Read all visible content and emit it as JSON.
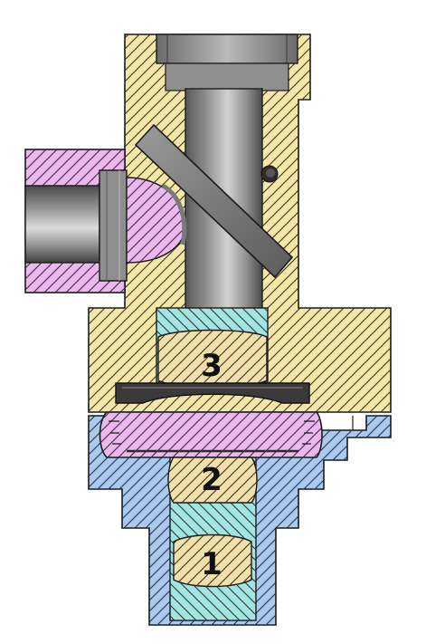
{
  "labels": {
    "lens1": "1",
    "lens2": "2",
    "lens3": "3"
  },
  "colors": {
    "yellow": "#f6e7a6",
    "blue": "#a9c9f0",
    "cyan": "#9fe6e3",
    "pink": "#ecb7ef",
    "lens": "#f3dfaa",
    "steel_dark": "#4c4c4c",
    "steel_mid": "#8b8b8b",
    "steel_light": "#c9c9c9",
    "outline": "#1a1a1a"
  }
}
